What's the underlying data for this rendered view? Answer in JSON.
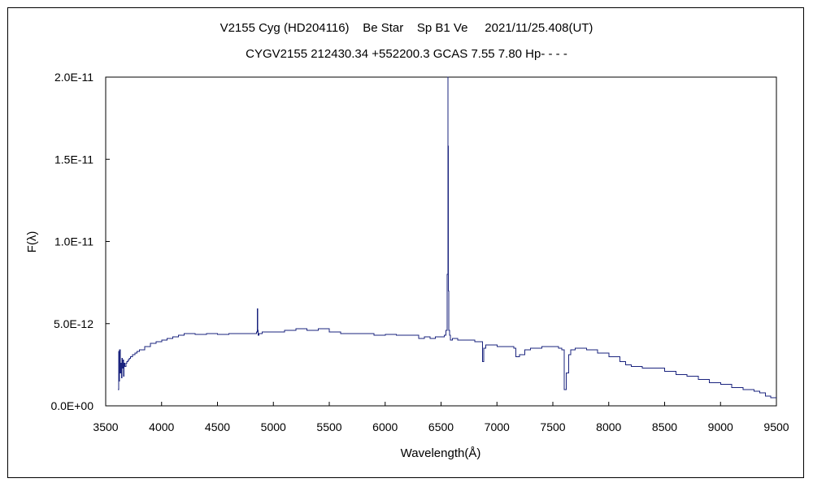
{
  "chart_data": {
    "type": "line",
    "title": "V2155 Cyg (HD204116)    Be Star    Sp B1 Ve     2021/11/25.408(UT)",
    "subtitle": "CYGV2155 212430.34 +552200.3 GCAS 7.55 7.80 Hp- - - -",
    "xlabel": "Wavelength(Å)",
    "ylabel": "F(λ)",
    "xlim": [
      3500,
      9500
    ],
    "ylim": [
      0,
      2e-11
    ],
    "x_ticks": [
      "3500",
      "4000",
      "4500",
      "5000",
      "5500",
      "6000",
      "6500",
      "7000",
      "7500",
      "8000",
      "8500",
      "9000",
      "9500"
    ],
    "y_ticks": [
      "0.0E+00",
      "5.0E-12",
      "1.0E-11",
      "1.5E-11",
      "2.0E-11"
    ],
    "grid": false,
    "line_color": "#1a237e",
    "series": [
      {
        "x": [
          3610,
          3615,
          3620,
          3625,
          3630,
          3635,
          3640,
          3645,
          3650,
          3655,
          3660,
          3665,
          3670,
          3680,
          3690,
          3700,
          3710,
          3720,
          3740,
          3760,
          3780,
          3800,
          3850,
          3900,
          3950,
          4000,
          4050,
          4100,
          4150,
          4200,
          4300,
          4400,
          4500,
          4600,
          4700,
          4800,
          4850,
          4858,
          4861,
          4864,
          4870,
          4900,
          5000,
          5100,
          5200,
          5300,
          5400,
          5500,
          5600,
          5700,
          5800,
          5900,
          6000,
          6100,
          6200,
          6300,
          6350,
          6400,
          6450,
          6500,
          6530,
          6545,
          6555,
          6560,
          6563,
          6566,
          6570,
          6575,
          6585,
          6600,
          6650,
          6700,
          6800,
          6860,
          6870,
          6880,
          6900,
          6950,
          7000,
          7100,
          7150,
          7170,
          7200,
          7250,
          7300,
          7400,
          7500,
          7550,
          7580,
          7600,
          7620,
          7640,
          7660,
          7700,
          7800,
          7900,
          8000,
          8100,
          8150,
          8200,
          8300,
          8400,
          8500,
          8600,
          8700,
          8800,
          8900,
          9000,
          9100,
          9200,
          9300,
          9350,
          9400,
          9450,
          9500
        ],
        "y": [
          1e-12,
          3.3e-12,
          1.5e-12,
          3.4e-12,
          2e-12,
          2.6e-12,
          1.7e-12,
          2.9e-12,
          2.3e-12,
          2.8e-12,
          1.8e-12,
          2.6e-12,
          2.4e-12,
          2.6e-12,
          2.7e-12,
          2.8e-12,
          2.9e-12,
          3e-12,
          3.1e-12,
          3.2e-12,
          3.3e-12,
          3.4e-12,
          3.6e-12,
          3.8e-12,
          3.9e-12,
          4e-12,
          4.1e-12,
          4.2e-12,
          4.3e-12,
          4.4e-12,
          4.35e-12,
          4.4e-12,
          4.35e-12,
          4.4e-12,
          4.4e-12,
          4.4e-12,
          4.5e-12,
          5.9e-12,
          4.6e-12,
          4.3e-12,
          4.4e-12,
          4.5e-12,
          4.5e-12,
          4.6e-12,
          4.7e-12,
          4.6e-12,
          4.7e-12,
          4.5e-12,
          4.4e-12,
          4.4e-12,
          4.4e-12,
          4.3e-12,
          4.35e-12,
          4.3e-12,
          4.3e-12,
          4.1e-12,
          4.2e-12,
          4.1e-12,
          4.2e-12,
          4.2e-12,
          4.3e-12,
          4.6e-12,
          8e-12,
          2e-11,
          1.58e-11,
          7e-12,
          4.6e-12,
          4.3e-12,
          4e-12,
          4.1e-12,
          4e-12,
          4e-12,
          3.9e-12,
          3.9e-12,
          2.7e-12,
          3.5e-12,
          3.7e-12,
          3.7e-12,
          3.6e-12,
          3.6e-12,
          3.5e-12,
          3e-12,
          3.1e-12,
          3.4e-12,
          3.5e-12,
          3.6e-12,
          3.6e-12,
          3.5e-12,
          3.4e-12,
          1e-12,
          2e-12,
          3.1e-12,
          3.4e-12,
          3.5e-12,
          3.4e-12,
          3.2e-12,
          3e-12,
          2.7e-12,
          2.5e-12,
          2.4e-12,
          2.3e-12,
          2.3e-12,
          2.1e-12,
          1.9e-12,
          1.8e-12,
          1.6e-12,
          1.4e-12,
          1.3e-12,
          1.1e-12,
          1e-12,
          9e-13,
          8e-13,
          6e-13,
          5e-13,
          5e-13
        ]
      }
    ]
  }
}
